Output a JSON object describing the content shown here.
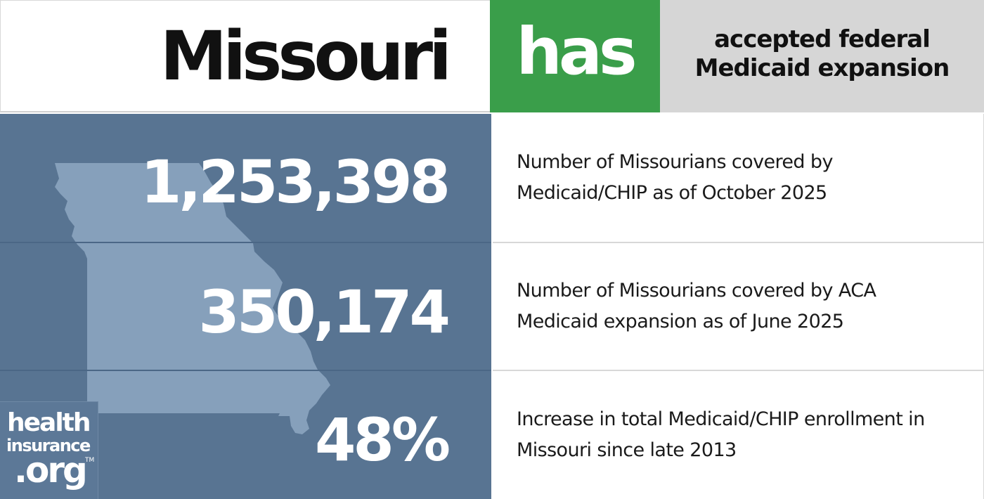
{
  "header": {
    "state": "Missouri",
    "status": "has",
    "description": "accepted federal Medicaid expansion"
  },
  "stats": [
    {
      "value": "1,253,398",
      "description": "Number of Missourians covered by Medicaid/CHIP as of October 2025"
    },
    {
      "value": "350,174",
      "description": "Number of Missourians covered by ACA Medicaid expansion as of June 2025"
    },
    {
      "value": "48%",
      "description": "Increase in total Medicaid/CHIP enrollment in Missouri since late 2013"
    }
  ],
  "logo": {
    "line1": "health",
    "line2": "insurance",
    "line3": ".org",
    "trademark": "TM"
  },
  "colors": {
    "status_green": "#3a9e4a",
    "panel_blue": "#587492",
    "map_fill": "#86a0bb",
    "header_gray": "#d6d6d6"
  }
}
